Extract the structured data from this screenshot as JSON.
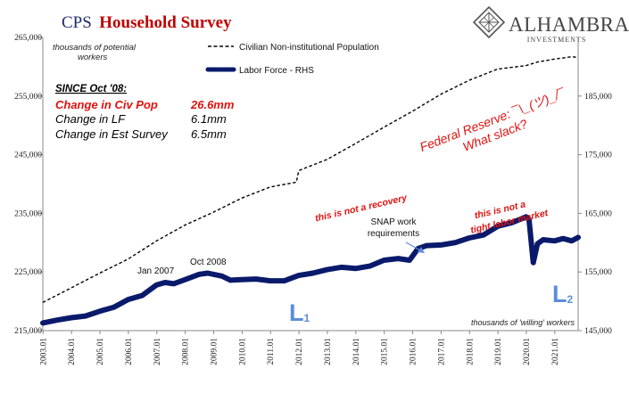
{
  "header": {
    "title_part1": "CPS",
    "title_part2": "Household Survey",
    "logo_name": "ALHAMBRA",
    "logo_sub": "INVESTMENTS",
    "logo_icon": "alhambra-diamond-logo"
  },
  "chart_data": {
    "type": "line",
    "x_ticks": [
      "2003.01",
      "2004.01",
      "2005.01",
      "2006.01",
      "2007.01",
      "2008.01",
      "2009.01",
      "2010.01",
      "2011.01",
      "2012.01",
      "2013.01",
      "2014.01",
      "2015.01",
      "2016.01",
      "2017.01",
      "2018.01",
      "2019.01",
      "2020.01",
      "2021.01"
    ],
    "xlim": [
      2003.0,
      2021.83
    ],
    "left_axis": {
      "ylim": [
        215000,
        265000
      ],
      "ticks": [
        "215,000",
        "225,000",
        "235,000",
        "245,000",
        "255,000",
        "265,000"
      ],
      "label": "thousands of potential workers"
    },
    "right_axis": {
      "ylim": [
        145000,
        195000
      ],
      "ticks": [
        "145,000",
        "155,000",
        "165,000",
        "175,000",
        "185,000"
      ],
      "label": "thousands of 'willing' workers"
    },
    "series": [
      {
        "name": "Civilian Non-institutional Population",
        "axis": "left",
        "style": "dashed",
        "color": "#000000",
        "x": [
          2003.0,
          2004.0,
          2005.0,
          2006.0,
          2007.0,
          2008.0,
          2009.0,
          2010.0,
          2011.0,
          2011.92,
          2012.0,
          2013.0,
          2014.0,
          2015.0,
          2016.0,
          2017.0,
          2018.0,
          2019.0,
          2020.0,
          2020.4,
          2021.0,
          2021.6,
          2021.83
        ],
        "y": [
          219800,
          222300,
          224800,
          227200,
          230300,
          233000,
          235200,
          237600,
          239500,
          240300,
          242300,
          244200,
          246900,
          249700,
          252400,
          255300,
          257700,
          259600,
          260200,
          260800,
          261300,
          261700,
          261600
        ]
      },
      {
        "name": "Labor Force - RHS",
        "axis": "right",
        "style": "solid",
        "color": "#0a1a6b",
        "x": [
          2003.0,
          2003.5,
          2004.0,
          2004.5,
          2005.0,
          2005.5,
          2006.0,
          2006.5,
          2007.0,
          2007.3,
          2007.6,
          2008.0,
          2008.5,
          2008.8,
          2009.3,
          2009.6,
          2010.0,
          2010.5,
          2011.0,
          2011.5,
          2012.0,
          2012.5,
          2013.0,
          2013.5,
          2014.0,
          2014.5,
          2015.0,
          2015.5,
          2015.9,
          2016.2,
          2016.5,
          2017.0,
          2017.5,
          2018.0,
          2018.5,
          2019.0,
          2019.5,
          2020.0,
          2020.1,
          2020.25,
          2020.4,
          2020.6,
          2021.0,
          2021.3,
          2021.6,
          2021.83
        ],
        "y": [
          146300,
          146800,
          147200,
          147500,
          148300,
          149000,
          150300,
          151000,
          152800,
          153200,
          153000,
          153700,
          154600,
          154800,
          154300,
          153600,
          153700,
          153800,
          153500,
          153500,
          154400,
          154800,
          155400,
          155800,
          155600,
          156000,
          157000,
          157300,
          157000,
          159000,
          159500,
          159600,
          160000,
          160800,
          161300,
          162800,
          163400,
          164400,
          164000,
          156600,
          159800,
          160500,
          160300,
          160700,
          160300,
          160900
        ]
      }
    ]
  },
  "annotations": {
    "since_header": "SINCE Oct '08:",
    "civ_pop_label": "Change in Civ Pop",
    "civ_pop_value": "26.6mm",
    "lf_label": "Change in LF",
    "lf_value": "6.1mm",
    "est_label": "Change in Est Survey",
    "est_value": "6.5mm",
    "fed_line1": "Federal Reserve: ¯\\_(ツ)_/¯",
    "fed_line2": "What slack?",
    "not_recovery": "this is not a recovery",
    "not_tight_1": "this is not a",
    "not_tight_2": "tight labor market",
    "snap_1": "SNAP work",
    "snap_2": "requirements",
    "jan2007": "Jan  2007",
    "oct2008": "Oct 2008",
    "l1_letter": "L",
    "l1_sub": "1",
    "l2_letter": "L",
    "l2_sub": "2"
  },
  "colors": {
    "title_blue": "#1f2a6b",
    "title_red": "#c00000",
    "annotation_red": "#e0120f",
    "labor_force_navy": "#0a1a6b",
    "L_marker_blue": "#5b8dd9"
  }
}
